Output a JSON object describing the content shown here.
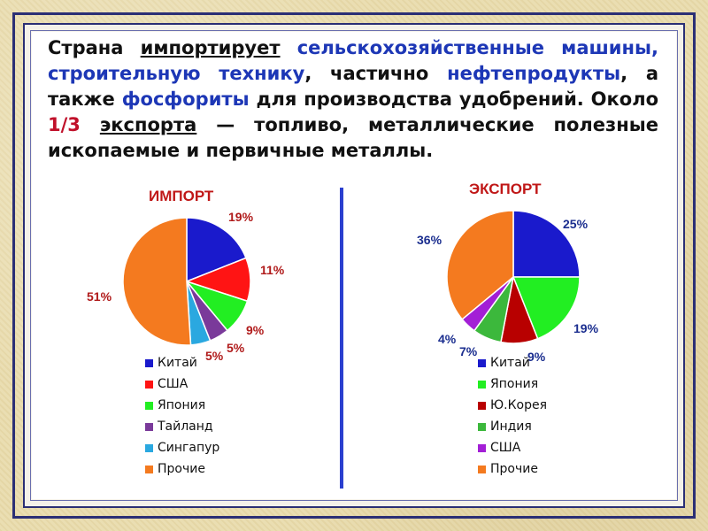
{
  "paragraph": {
    "w1": "Страна",
    "w2": "импортирует",
    "w3": "сельскохозяйственные машины,",
    "w4": "строительную технику",
    "w5": ", частично",
    "w6": "нефтепродукты",
    "w7": ", а также",
    "w8": "фосфориты",
    "w9": "для производства  удобрений. Около",
    "w10": "1/3",
    "w11": "экспорта",
    "w12": "— топливо, металлические полезные ископаемые и первичные металлы."
  },
  "colors": {
    "blue": "#1a1acc",
    "red": "#ff1414",
    "green": "#22ee22",
    "purple": "#7a3a9a",
    "cyan": "#2aa8e0",
    "orange": "#f47a1f",
    "darkred": "#b80000",
    "darkgreen": "#3cb83c",
    "violet": "#a31fd6",
    "blue_label": "#1b2e8f",
    "red_label": "#b01a1a"
  },
  "chart_data": [
    {
      "type": "pie",
      "title": "ИМПОРТ",
      "categories": [
        "Китай",
        "США",
        "Япония",
        "Тайланд",
        "Сингапур",
        "Прочие"
      ],
      "values": [
        19,
        11,
        9,
        5,
        5,
        51
      ],
      "labels": [
        "19%",
        "11%",
        "9%",
        "5%",
        "5%",
        "51%"
      ],
      "slice_colors": [
        "#1a1acc",
        "#ff1414",
        "#22ee22",
        "#7a3a9a",
        "#2aa8e0",
        "#f47a1f"
      ],
      "legend": "bottom"
    },
    {
      "type": "pie",
      "title": "ЭКСПОРТ",
      "categories": [
        "Китай",
        "Япония",
        "Ю.Корея",
        "Индия",
        "США",
        "Прочие"
      ],
      "values": [
        25,
        19,
        9,
        7,
        4,
        36
      ],
      "labels": [
        "25%",
        "19%",
        "9%",
        "7%",
        "4%",
        "36%"
      ],
      "slice_colors": [
        "#1a1acc",
        "#22ee22",
        "#b80000",
        "#3cb83c",
        "#a31fd6",
        "#f47a1f"
      ],
      "legend": "bottom"
    }
  ]
}
